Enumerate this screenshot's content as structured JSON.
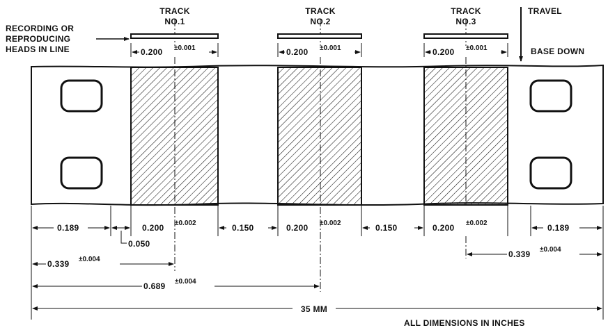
{
  "labels": {
    "heads": [
      "RECORDING OR",
      "REPRODUCING",
      "HEADS IN LINE"
    ],
    "travel": "TRAVEL",
    "base_down": "BASE DOWN",
    "units_note": "ALL DIMENSIONS IN INCHES"
  },
  "tracks": [
    {
      "line1": "TRACK",
      "line2": "NO.1",
      "head_width": "0.200",
      "head_tol": "±0.001",
      "film_width": "0.200",
      "film_tol": "±0.002"
    },
    {
      "line1": "TRACK",
      "line2": "NO.2",
      "head_width": "0.200",
      "head_tol": "±0.001",
      "film_width": "0.200",
      "film_tol": "±0.002"
    },
    {
      "line1": "TRACK",
      "line2": "NO.3",
      "head_width": "0.200",
      "head_tol": "±0.001",
      "film_width": "0.200",
      "film_tol": "±0.002"
    }
  ],
  "dimensions": {
    "edge_left": "0.189",
    "edge_right": "0.189",
    "gap_small": "0.050",
    "gap_1": "0.150",
    "gap_2": "0.150",
    "offset_left": "0.339",
    "offset_left_tol": "±0.004",
    "offset_right": "0.339",
    "offset_right_tol": "±0.004",
    "center": "0.689",
    "center_tol": "±0.004",
    "overall": "35 MM"
  },
  "colors": {
    "ink": "#111111",
    "paper": "#ffffff"
  }
}
